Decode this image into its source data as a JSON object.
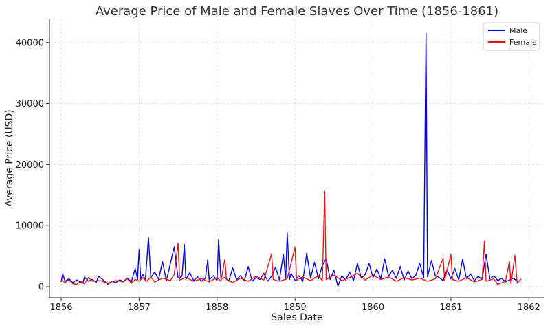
{
  "chart_data": {
    "type": "line",
    "title": "Average Price of Male and Female Slaves Over Time (1856-1861)",
    "xlabel": "Sales Date",
    "ylabel": "Average Price (USD)",
    "xlim": [
      1855.85,
      1862.2
    ],
    "ylim": [
      -1800,
      43800
    ],
    "x_ticks": [
      1856,
      1857,
      1858,
      1859,
      1860,
      1861,
      1862
    ],
    "y_ticks": [
      0,
      10000,
      20000,
      30000,
      40000
    ],
    "y_tick_labels": [
      "0",
      "10000",
      "20000",
      "30000",
      "40000"
    ],
    "grid": true,
    "legend_position": "top-right",
    "series": [
      {
        "name": "Male",
        "color": "#0000dd",
        "points": [
          [
            1856.0,
            800
          ],
          [
            1856.02,
            2100
          ],
          [
            1856.05,
            900
          ],
          [
            1856.1,
            1300
          ],
          [
            1856.15,
            700
          ],
          [
            1856.2,
            1100
          ],
          [
            1856.28,
            600
          ],
          [
            1856.3,
            1600
          ],
          [
            1856.35,
            900
          ],
          [
            1856.4,
            1200
          ],
          [
            1856.45,
            700
          ],
          [
            1856.48,
            1700
          ],
          [
            1856.55,
            1000
          ],
          [
            1856.6,
            400
          ],
          [
            1856.65,
            900
          ],
          [
            1856.7,
            700
          ],
          [
            1856.75,
            1100
          ],
          [
            1856.8,
            900
          ],
          [
            1856.85,
            1400
          ],
          [
            1856.9,
            800
          ],
          [
            1856.95,
            3000
          ],
          [
            1856.98,
            1200
          ],
          [
            1857.0,
            6100
          ],
          [
            1857.02,
            1300
          ],
          [
            1857.05,
            2000
          ],
          [
            1857.08,
            1000
          ],
          [
            1857.12,
            8100
          ],
          [
            1857.15,
            1500
          ],
          [
            1857.2,
            2400
          ],
          [
            1857.25,
            1200
          ],
          [
            1857.3,
            4100
          ],
          [
            1857.35,
            1000
          ],
          [
            1857.45,
            6500
          ],
          [
            1857.5,
            1400
          ],
          [
            1857.55,
            1700
          ],
          [
            1857.58,
            6900
          ],
          [
            1857.6,
            1200
          ],
          [
            1857.65,
            2300
          ],
          [
            1857.7,
            1000
          ],
          [
            1857.75,
            1600
          ],
          [
            1857.8,
            900
          ],
          [
            1857.85,
            1400
          ],
          [
            1857.88,
            4400
          ],
          [
            1857.9,
            1100
          ],
          [
            1857.95,
            1800
          ],
          [
            1858.0,
            1000
          ],
          [
            1858.02,
            7700
          ],
          [
            1858.05,
            1300
          ],
          [
            1858.1,
            1500
          ],
          [
            1858.15,
            900
          ],
          [
            1858.2,
            3100
          ],
          [
            1858.25,
            1200
          ],
          [
            1858.3,
            1800
          ],
          [
            1858.35,
            1000
          ],
          [
            1858.4,
            3300
          ],
          [
            1858.45,
            900
          ],
          [
            1858.5,
            1500
          ],
          [
            1858.55,
            1200
          ],
          [
            1858.6,
            2200
          ],
          [
            1858.65,
            900
          ],
          [
            1858.7,
            1700
          ],
          [
            1858.75,
            3200
          ],
          [
            1858.8,
            1100
          ],
          [
            1858.85,
            5300
          ],
          [
            1858.88,
            1300
          ],
          [
            1858.9,
            8800
          ],
          [
            1858.93,
            1200
          ],
          [
            1858.95,
            2200
          ],
          [
            1859.0,
            1000
          ],
          [
            1859.05,
            1800
          ],
          [
            1859.1,
            900
          ],
          [
            1859.15,
            5500
          ],
          [
            1859.2,
            1400
          ],
          [
            1859.25,
            4000
          ],
          [
            1859.3,
            1300
          ],
          [
            1859.35,
            3500
          ],
          [
            1859.4,
            4600
          ],
          [
            1859.45,
            1200
          ],
          [
            1859.5,
            2700
          ],
          [
            1859.55,
            100
          ],
          [
            1859.6,
            1800
          ],
          [
            1859.65,
            1100
          ],
          [
            1859.7,
            2400
          ],
          [
            1859.75,
            1000
          ],
          [
            1859.8,
            3800
          ],
          [
            1859.85,
            1400
          ],
          [
            1859.9,
            2000
          ],
          [
            1859.95,
            3800
          ],
          [
            1860.0,
            1500
          ],
          [
            1860.05,
            2900
          ],
          [
            1860.1,
            1300
          ],
          [
            1860.15,
            4600
          ],
          [
            1860.2,
            1700
          ],
          [
            1860.25,
            2700
          ],
          [
            1860.3,
            1400
          ],
          [
            1860.35,
            3300
          ],
          [
            1860.4,
            1100
          ],
          [
            1860.45,
            2600
          ],
          [
            1860.5,
            1300
          ],
          [
            1860.55,
            1900
          ],
          [
            1860.6,
            3800
          ],
          [
            1860.65,
            1500
          ],
          [
            1860.68,
            41500
          ],
          [
            1860.7,
            1600
          ],
          [
            1860.75,
            4300
          ],
          [
            1860.8,
            1800
          ],
          [
            1860.85,
            1500
          ],
          [
            1860.9,
            1000
          ],
          [
            1860.95,
            2800
          ],
          [
            1861.0,
            1300
          ],
          [
            1861.05,
            3000
          ],
          [
            1861.1,
            1100
          ],
          [
            1861.15,
            4500
          ],
          [
            1861.2,
            1300
          ],
          [
            1861.25,
            2100
          ],
          [
            1861.3,
            1000
          ],
          [
            1861.35,
            1700
          ],
          [
            1861.4,
            1200
          ],
          [
            1861.43,
            3700
          ],
          [
            1861.45,
            5300
          ],
          [
            1861.5,
            1300
          ],
          [
            1861.55,
            1800
          ],
          [
            1861.6,
            1000
          ],
          [
            1861.65,
            1400
          ],
          [
            1861.7,
            800
          ],
          [
            1861.8,
            1400
          ],
          [
            1861.85,
            900
          ]
        ]
      },
      {
        "name": "Female",
        "color": "#ee1111",
        "points": [
          [
            1856.0,
            1100
          ],
          [
            1856.05,
            700
          ],
          [
            1856.1,
            1100
          ],
          [
            1856.15,
            500
          ],
          [
            1856.2,
            400
          ],
          [
            1856.25,
            900
          ],
          [
            1856.3,
            500
          ],
          [
            1856.35,
            1500
          ],
          [
            1856.4,
            900
          ],
          [
            1856.5,
            1000
          ],
          [
            1856.6,
            600
          ],
          [
            1856.7,
            1000
          ],
          [
            1856.8,
            800
          ],
          [
            1856.85,
            1300
          ],
          [
            1856.9,
            600
          ],
          [
            1856.95,
            1200
          ],
          [
            1857.0,
            900
          ],
          [
            1857.05,
            1500
          ],
          [
            1857.1,
            900
          ],
          [
            1857.15,
            1600
          ],
          [
            1857.2,
            800
          ],
          [
            1857.3,
            1400
          ],
          [
            1857.4,
            1000
          ],
          [
            1857.45,
            2000
          ],
          [
            1857.5,
            7100
          ],
          [
            1857.52,
            1100
          ],
          [
            1857.6,
            1500
          ],
          [
            1857.7,
            900
          ],
          [
            1857.8,
            1300
          ],
          [
            1857.9,
            800
          ],
          [
            1858.0,
            1500
          ],
          [
            1858.05,
            900
          ],
          [
            1858.1,
            4500
          ],
          [
            1858.12,
            1200
          ],
          [
            1858.2,
            700
          ],
          [
            1858.3,
            1400
          ],
          [
            1858.4,
            900
          ],
          [
            1858.5,
            1700
          ],
          [
            1858.6,
            1100
          ],
          [
            1858.7,
            5400
          ],
          [
            1858.72,
            1200
          ],
          [
            1858.8,
            900
          ],
          [
            1858.9,
            1300
          ],
          [
            1859.0,
            6500
          ],
          [
            1859.02,
            1100
          ],
          [
            1859.1,
            1600
          ],
          [
            1859.2,
            1000
          ],
          [
            1859.3,
            1800
          ],
          [
            1859.35,
            1000
          ],
          [
            1859.38,
            15600
          ],
          [
            1859.4,
            1200
          ],
          [
            1859.5,
            1900
          ],
          [
            1859.6,
            1000
          ],
          [
            1859.7,
            1500
          ],
          [
            1859.8,
            2200
          ],
          [
            1859.9,
            1100
          ],
          [
            1860.0,
            1900
          ],
          [
            1860.1,
            1200
          ],
          [
            1860.2,
            1600
          ],
          [
            1860.3,
            900
          ],
          [
            1860.4,
            1500
          ],
          [
            1860.5,
            1100
          ],
          [
            1860.6,
            1400
          ],
          [
            1860.7,
            900
          ],
          [
            1860.8,
            1300
          ],
          [
            1860.9,
            4700
          ],
          [
            1860.92,
            1100
          ],
          [
            1861.0,
            5300
          ],
          [
            1861.02,
            1200
          ],
          [
            1861.1,
            900
          ],
          [
            1861.2,
            1500
          ],
          [
            1861.3,
            800
          ],
          [
            1861.4,
            1200
          ],
          [
            1861.43,
            7500
          ],
          [
            1861.45,
            900
          ],
          [
            1861.55,
            1300
          ],
          [
            1861.6,
            400
          ],
          [
            1861.7,
            900
          ],
          [
            1861.75,
            4100
          ],
          [
            1861.77,
            500
          ],
          [
            1861.82,
            5100
          ],
          [
            1861.85,
            600
          ],
          [
            1861.9,
            1300
          ]
        ]
      }
    ]
  }
}
